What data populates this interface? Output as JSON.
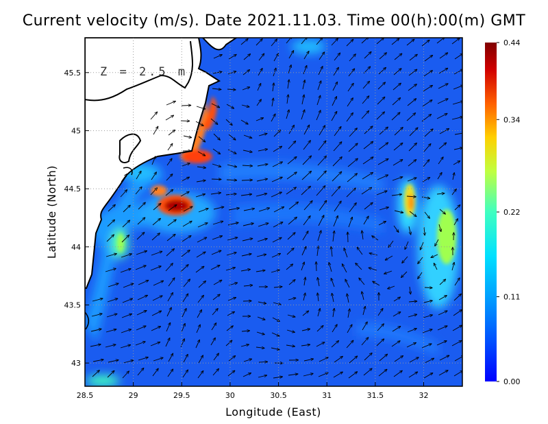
{
  "title": "Current velocity (m/s). Date 2021.11.03. Time 00(h):00(m) GMT",
  "depth_label": "Z = 2.5 m",
  "chart_data": {
    "type": "heatmap",
    "xlabel": "Longitude (East)",
    "ylabel": "Latitude (North)",
    "xlim": [
      28.5,
      32.4
    ],
    "ylim": [
      42.8,
      45.8
    ],
    "x_ticks": [
      "28.5",
      "29",
      "29.5",
      "30",
      "30.5",
      "31",
      "31.5",
      "32"
    ],
    "y_ticks": [
      "43",
      "43.5",
      "44",
      "44.5",
      "45",
      "45.5"
    ],
    "grid": true,
    "colorbar": {
      "min": 0.0,
      "max": 0.44,
      "tick_labels": [
        "0.44",
        "0.34",
        "0.22",
        "0.11",
        "0.00"
      ],
      "colors": [
        "#0000ff",
        "#0060ff",
        "#00c0ff",
        "#40ffc0",
        "#c0ff40",
        "#ffd000",
        "#ff6000",
        "#d00000",
        "#800000"
      ]
    },
    "vector_field": "arrows showing current direction and speed"
  },
  "colors": {
    "land": "#ffffff",
    "coastline": "#000000",
    "grid": "#999999"
  }
}
